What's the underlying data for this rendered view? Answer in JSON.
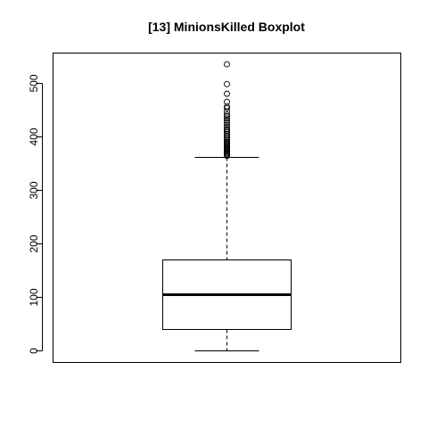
{
  "chart_data": {
    "type": "boxplot",
    "title": "[13] MinionsKilled Boxplot",
    "xlabel": "",
    "ylabel": "",
    "ylim": [
      -22,
      556
    ],
    "yticks": [
      "0",
      "100",
      "200",
      "300",
      "400",
      "500"
    ],
    "grid": false,
    "legend": "none",
    "box": {
      "whisker_low": 0,
      "q1": 40,
      "median": 106,
      "q3": 170,
      "whisker_high": 362
    },
    "outliers": [
      364,
      366,
      368,
      370,
      372,
      374,
      376,
      378,
      380,
      382,
      384,
      386,
      388,
      390,
      393,
      396,
      399,
      402,
      405,
      408,
      411,
      414,
      418,
      422,
      426,
      430,
      434,
      438,
      441,
      447,
      453,
      456,
      465,
      480,
      498,
      535
    ]
  }
}
